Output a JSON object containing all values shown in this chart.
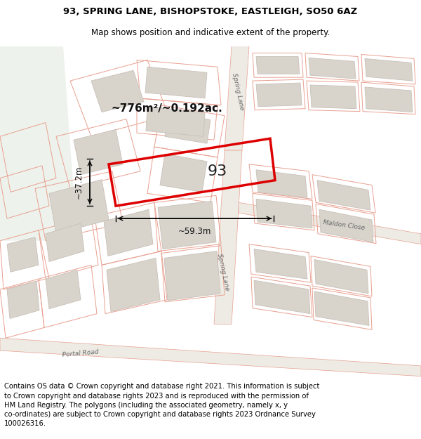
{
  "title_line1": "93, SPRING LANE, BISHOPSTOKE, EASTLEIGH, SO50 6AZ",
  "title_line2": "Map shows position and indicative extent of the property.",
  "footer_text": "Contains OS data © Crown copyright and database right 2021. This information is subject\nto Crown copyright and database rights 2023 and is reproduced with the permission of\nHM Land Registry. The polygons (including the associated geometry, namely x, y\nco-ordinates) are subject to Crown copyright and database rights 2023 Ordnance Survey\n100026316.",
  "area_label": "~776m²/~0.192ac.",
  "property_number": "93",
  "dim_width": "~59.3m",
  "dim_height": "~37.2m",
  "road_label_spring_upper": "Spring Lane",
  "road_label_spring_lower": "Spring Lane",
  "road_label_portal": "Portal Road",
  "close_label": "Maldon Close",
  "map_bg": "#f8f6f2",
  "green_area": "#eef2ec",
  "road_fill": "#f0ede8",
  "plot_edge": "#e8a090",
  "building_fill": "#d8d4cc",
  "building_edge": "#c8c0b8",
  "property_edge": "#dd0000",
  "property_fill": "none",
  "title_fontsize": 9.5,
  "subtitle_fontsize": 8.5,
  "footer_fontsize": 7.2
}
